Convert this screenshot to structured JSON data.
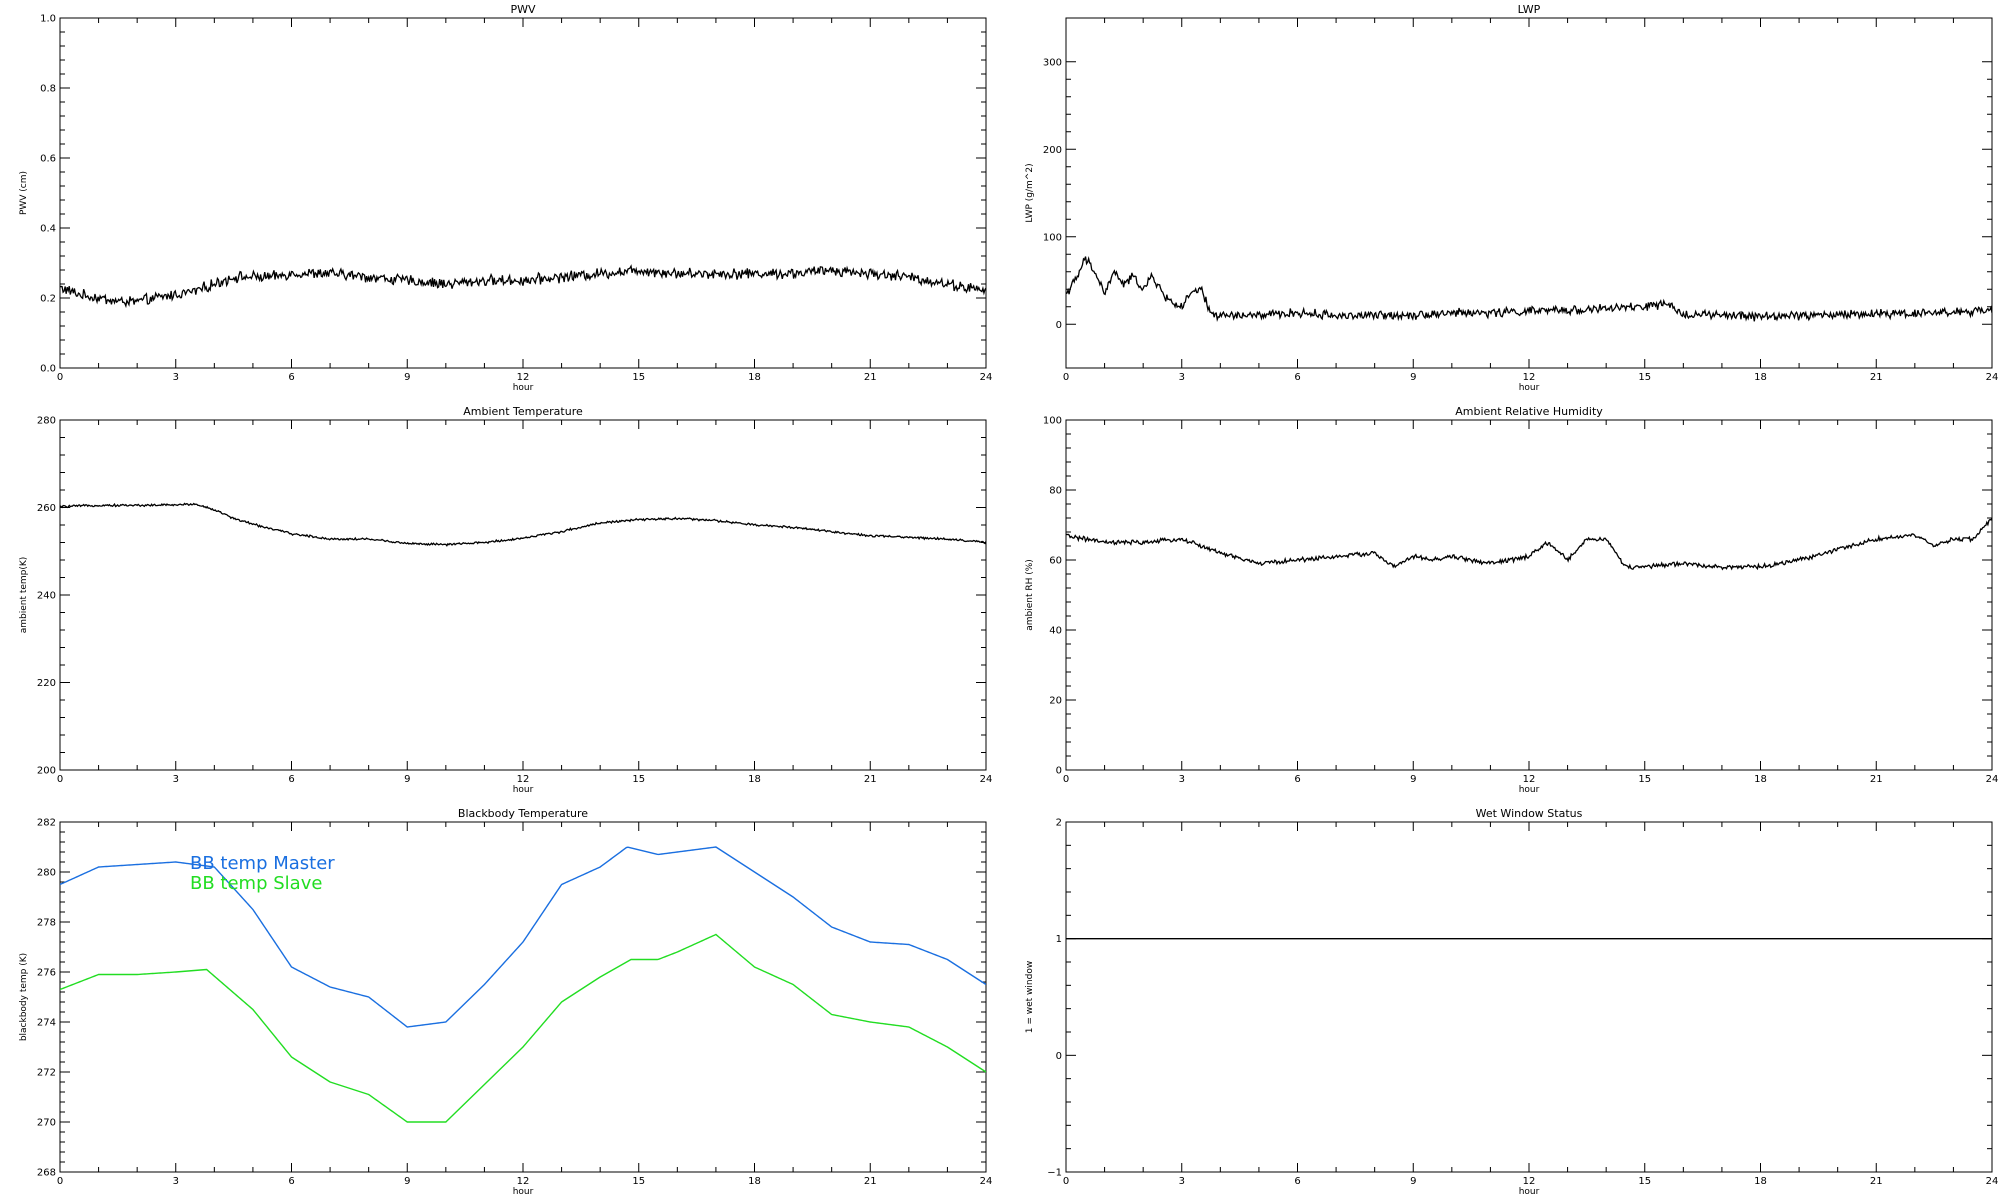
{
  "colors": {
    "axis": "#000000",
    "line": "#000000",
    "bb_master": "#1a6fe0",
    "bb_slave": "#22dd22"
  },
  "chart_data": [
    {
      "id": "pwv",
      "type": "line",
      "title": "PWV",
      "xlabel": "hour",
      "ylabel": "PWV (cm)",
      "xlim": [
        0,
        24
      ],
      "ylim": [
        0.0,
        1.0
      ],
      "xticks": [
        0,
        3,
        6,
        9,
        12,
        15,
        18,
        21,
        24
      ],
      "yticks": [
        "0.0",
        "0.2",
        "0.4",
        "0.6",
        "0.8",
        "1.0"
      ],
      "noise": 0.012,
      "series": [
        {
          "color": "#000000",
          "x": [
            0,
            0.5,
            1,
            1.5,
            2,
            2.5,
            3,
            3.5,
            4,
            4.5,
            5,
            5.5,
            6,
            7,
            8,
            9,
            10,
            11,
            12,
            13,
            14,
            15,
            16,
            17,
            18,
            19,
            20,
            21,
            22,
            23,
            24
          ],
          "y": [
            0.23,
            0.21,
            0.2,
            0.19,
            0.19,
            0.2,
            0.21,
            0.22,
            0.24,
            0.26,
            0.26,
            0.26,
            0.27,
            0.27,
            0.26,
            0.25,
            0.24,
            0.25,
            0.25,
            0.26,
            0.27,
            0.28,
            0.27,
            0.27,
            0.27,
            0.27,
            0.28,
            0.27,
            0.26,
            0.24,
            0.22
          ]
        }
      ]
    },
    {
      "id": "lwp",
      "type": "line",
      "title": "LWP",
      "xlabel": "hour",
      "ylabel": "LWP (g/m^2)",
      "xlim": [
        0,
        24
      ],
      "ylim": [
        -50,
        350
      ],
      "xticks": [
        0,
        3,
        6,
        9,
        12,
        15,
        18,
        21,
        24
      ],
      "yticks": [
        "0",
        "100",
        "200",
        "300"
      ],
      "noise": 4,
      "series": [
        {
          "color": "#000000",
          "x": [
            0,
            0.25,
            0.5,
            0.75,
            1,
            1.25,
            1.5,
            1.75,
            2,
            2.25,
            2.5,
            2.75,
            3,
            3.25,
            3.5,
            3.75,
            4,
            5,
            6,
            7,
            8,
            9,
            10,
            11,
            12,
            13,
            14,
            15,
            15.5,
            16,
            17,
            18,
            19,
            20,
            21,
            22,
            23,
            24
          ],
          "y": [
            35,
            50,
            75,
            60,
            35,
            60,
            45,
            55,
            40,
            55,
            35,
            25,
            20,
            35,
            40,
            12,
            10,
            10,
            13,
            10,
            10,
            11,
            13,
            13,
            15,
            16,
            18,
            20,
            23,
            12,
            10,
            9,
            10,
            11,
            12,
            13,
            14,
            15
          ]
        }
      ]
    },
    {
      "id": "ambient_temp",
      "type": "line",
      "title": "Ambient Temperature",
      "xlabel": "hour",
      "ylabel": "ambient temp(K)",
      "xlim": [
        0,
        24
      ],
      "ylim": [
        200,
        280
      ],
      "xticks": [
        0,
        3,
        6,
        9,
        12,
        15,
        18,
        21,
        24
      ],
      "yticks": [
        "200",
        "220",
        "240",
        "260",
        "280"
      ],
      "noise": 0.2,
      "series": [
        {
          "color": "#000000",
          "x": [
            0,
            1,
            2,
            3,
            3.5,
            4,
            4.5,
            5,
            6,
            7,
            8,
            9,
            10,
            11,
            12,
            13,
            14,
            15,
            16,
            17,
            18,
            19,
            20,
            21,
            22,
            23,
            24
          ],
          "y": [
            260.2,
            260.5,
            260.5,
            260.6,
            260.8,
            259.5,
            257.5,
            256.2,
            254.0,
            252.8,
            252.8,
            251.8,
            251.5,
            252.0,
            253.0,
            254.5,
            256.5,
            257.2,
            257.5,
            257.0,
            256.0,
            255.5,
            254.5,
            253.5,
            253.2,
            252.8,
            252.0
          ]
        }
      ]
    },
    {
      "id": "ambient_rh",
      "type": "line",
      "title": "Ambient Relative Humidity",
      "xlabel": "hour",
      "ylabel": "ambient RH (%)",
      "xlim": [
        0,
        24
      ],
      "ylim": [
        0,
        100
      ],
      "xticks": [
        0,
        3,
        6,
        9,
        12,
        15,
        18,
        21,
        24
      ],
      "yticks": [
        "0",
        "20",
        "40",
        "60",
        "80",
        "100"
      ],
      "noise": 0.5,
      "series": [
        {
          "color": "#000000",
          "x": [
            0,
            1,
            2,
            3,
            4,
            5,
            6,
            7,
            8,
            8.5,
            9,
            9.5,
            10,
            11,
            12,
            12.5,
            13,
            13.5,
            14,
            14.5,
            15,
            16,
            17,
            18,
            19,
            20,
            21,
            22,
            22.5,
            23,
            23.5,
            24
          ],
          "y": [
            67,
            65,
            65,
            66,
            62,
            59,
            60,
            61,
            62,
            58,
            61,
            60,
            61,
            59,
            61,
            65,
            60,
            66,
            66,
            58,
            58,
            59,
            58,
            58,
            60,
            63,
            66,
            67,
            64,
            66,
            66,
            72
          ]
        }
      ]
    },
    {
      "id": "bb_temp",
      "type": "line",
      "title": "Blackbody Temperature",
      "xlabel": "hour",
      "ylabel": "blackbody temp (K)",
      "xlim": [
        0,
        24
      ],
      "ylim": [
        268,
        282
      ],
      "xticks": [
        0,
        3,
        6,
        9,
        12,
        15,
        18,
        21,
        24
      ],
      "yticks": [
        "268",
        "270",
        "272",
        "274",
        "276",
        "278",
        "280",
        "282"
      ],
      "noise": 0,
      "legend": [
        "BB temp Master",
        "BB temp Slave"
      ],
      "series": [
        {
          "name": "BB temp Master",
          "color": "#1a6fe0",
          "x": [
            0,
            1,
            2,
            3,
            4,
            5,
            6,
            7,
            8,
            9,
            10,
            11,
            12,
            13,
            14,
            14.7,
            15.5,
            16,
            17,
            18,
            19,
            20,
            21,
            22,
            23,
            24
          ],
          "y": [
            279.5,
            280.2,
            280.3,
            280.4,
            280.2,
            278.5,
            276.2,
            275.4,
            275.0,
            273.8,
            274.0,
            275.5,
            277.2,
            279.5,
            280.2,
            281.0,
            280.7,
            280.8,
            281.0,
            280.0,
            279.0,
            277.8,
            277.2,
            277.1,
            276.5,
            275.5
          ]
        },
        {
          "name": "BB temp Slave",
          "color": "#22dd22",
          "x": [
            0,
            1,
            2,
            3,
            3.8,
            5,
            6,
            7,
            8,
            9,
            10,
            11,
            12,
            13,
            14,
            14.8,
            15.5,
            16,
            17,
            18,
            19,
            20,
            21,
            22,
            23,
            24
          ],
          "y": [
            275.3,
            275.9,
            275.9,
            276.0,
            276.1,
            274.5,
            272.6,
            271.6,
            271.1,
            270.0,
            270.0,
            271.5,
            273.0,
            274.8,
            275.8,
            276.5,
            276.5,
            276.8,
            277.5,
            276.2,
            275.5,
            274.3,
            274.0,
            273.8,
            273.0,
            272.0
          ]
        }
      ]
    },
    {
      "id": "wet_window",
      "type": "line",
      "title": "Wet Window Status",
      "xlabel": "hour",
      "ylabel": "1 = wet window",
      "xlim": [
        0,
        24
      ],
      "ylim": [
        -1,
        2
      ],
      "xticks": [
        0,
        3,
        6,
        9,
        12,
        15,
        18,
        21,
        24
      ],
      "yticks": [
        "−1",
        "0",
        "1",
        "2"
      ],
      "noise": 0,
      "series": [
        {
          "color": "#000000",
          "x": [
            0,
            24
          ],
          "y": [
            1,
            1
          ]
        }
      ]
    }
  ]
}
